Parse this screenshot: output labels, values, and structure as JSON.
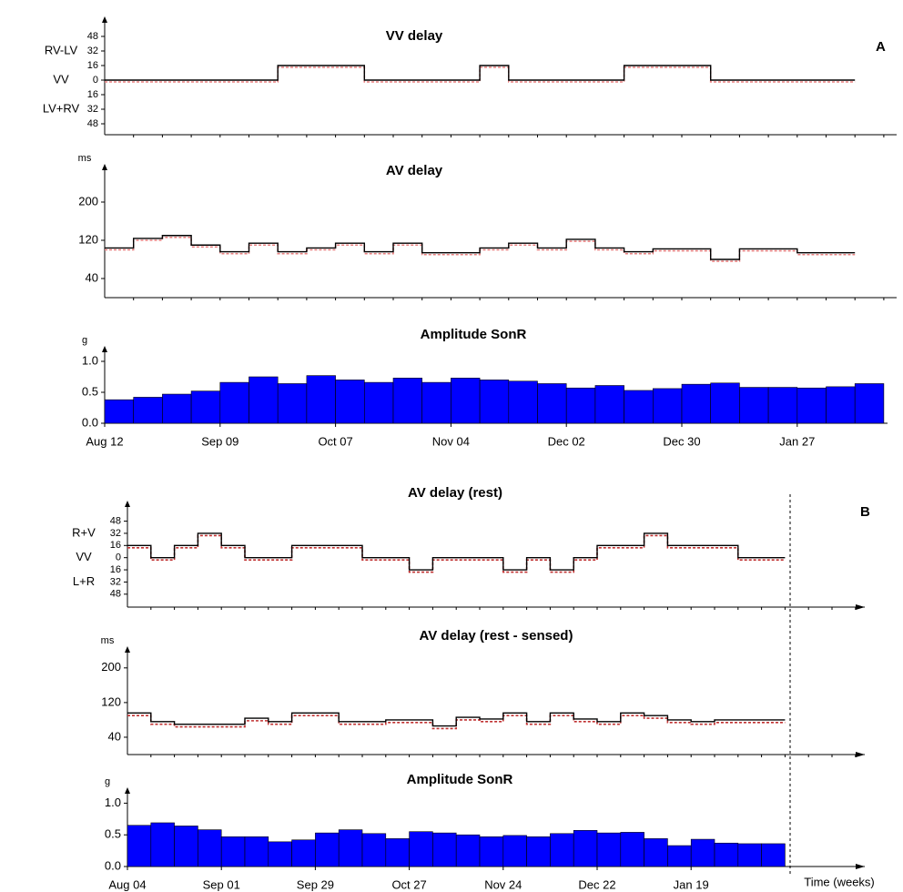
{
  "panel_labels": [
    "A",
    "B"
  ],
  "chart_data": [
    {
      "type": "step",
      "title": "VV delay",
      "ylim": [
        -60,
        70
      ],
      "yticks": [
        48,
        32,
        16,
        0,
        {
          "value": -16,
          "label": "16"
        },
        {
          "value": -32,
          "label": "32"
        },
        {
          "value": -48,
          "label": "48"
        }
      ],
      "side_labels": [
        {
          "value": 32,
          "label": "RV-LV"
        },
        {
          "value": 0,
          "label": "VV"
        },
        {
          "value": -32,
          "label": "LV+RV"
        }
      ],
      "x": [
        0,
        1,
        2,
        3,
        4,
        5,
        6,
        7,
        8,
        9,
        10,
        11,
        12,
        13,
        14,
        15,
        16,
        17,
        18,
        19,
        20,
        21,
        22,
        23,
        24,
        25
      ],
      "series": [
        {
          "color": "#e88080",
          "dash": true,
          "values": [
            -2,
            -2,
            -2,
            -2,
            -2,
            -2,
            14,
            14,
            14,
            -2,
            -2,
            -2,
            -2,
            14,
            -2,
            -2,
            -2,
            -2,
            14,
            14,
            14,
            -2,
            -2,
            -2,
            -2,
            -2
          ]
        },
        {
          "color": "#000000",
          "values": [
            0,
            0,
            0,
            0,
            0,
            0,
            16,
            16,
            16,
            0,
            0,
            0,
            0,
            16,
            0,
            0,
            0,
            0,
            16,
            16,
            16,
            0,
            0,
            0,
            0,
            0
          ]
        }
      ]
    },
    {
      "type": "step",
      "title": "AV delay",
      "unit": "ms",
      "ylim": [
        0,
        280
      ],
      "yticks": [
        200,
        120,
        40
      ],
      "x": [
        0,
        1,
        2,
        3,
        4,
        5,
        6,
        7,
        8,
        9,
        10,
        11,
        12,
        13,
        14,
        15,
        16,
        17,
        18,
        19,
        20,
        21,
        22,
        23,
        24,
        25
      ],
      "series": [
        {
          "color": "#e88080",
          "dash": true,
          "values": [
            100,
            120,
            126,
            106,
            92,
            110,
            92,
            100,
            110,
            92,
            110,
            90,
            90,
            100,
            110,
            100,
            118,
            100,
            92,
            98,
            98,
            76,
            98,
            98,
            90,
            90
          ]
        },
        {
          "color": "#000000",
          "values": [
            104,
            124,
            130,
            110,
            96,
            114,
            96,
            104,
            114,
            96,
            114,
            94,
            94,
            104,
            114,
            104,
            122,
            104,
            96,
            102,
            102,
            80,
            102,
            102,
            94,
            94
          ]
        }
      ]
    },
    {
      "type": "bar",
      "title": "Amplitude SonR",
      "unit": "g",
      "color": "#0000ff",
      "ylim": [
        0,
        1.25
      ],
      "yticks": [
        {
          "value": 0,
          "label": "0.0"
        },
        {
          "value": 0.5,
          "label": "0.5"
        },
        {
          "value": 1,
          "label": "1.0"
        }
      ],
      "xticks": [
        {
          "value": 0,
          "label": "Aug 12"
        },
        {
          "value": 4,
          "label": "Sep 09"
        },
        {
          "value": 8,
          "label": "Oct 07"
        },
        {
          "value": 12,
          "label": "Nov 04"
        },
        {
          "value": 16,
          "label": "Dec 02"
        },
        {
          "value": 20,
          "label": "Dec 30"
        },
        {
          "value": 24,
          "label": "Jan 27"
        }
      ],
      "x": [
        0,
        1,
        2,
        3,
        4,
        5,
        6,
        7,
        8,
        9,
        10,
        11,
        12,
        13,
        14,
        15,
        16,
        17,
        18,
        19,
        20,
        21,
        22,
        23,
        24,
        25,
        26
      ],
      "values": [
        0.38,
        0.42,
        0.47,
        0.52,
        0.66,
        0.75,
        0.64,
        0.77,
        0.7,
        0.66,
        0.73,
        0.66,
        0.73,
        0.7,
        0.68,
        0.64,
        0.57,
        0.61,
        0.53,
        0.56,
        0.63,
        0.65,
        0.58,
        0.58,
        0.57,
        0.59,
        0.64
      ]
    },
    {
      "type": "step",
      "title": "AV delay (rest)",
      "ylim": [
        -65,
        75
      ],
      "yticks": [
        48,
        32,
        16,
        0,
        {
          "value": -16,
          "label": "16"
        },
        {
          "value": -32,
          "label": "32"
        },
        {
          "value": -48,
          "label": "48"
        }
      ],
      "side_labels": [
        {
          "value": 32,
          "label": "R+V"
        },
        {
          "value": 0,
          "label": "VV"
        },
        {
          "value": -32,
          "label": "L+R"
        }
      ],
      "x": [
        0,
        1,
        2,
        3,
        4,
        5,
        6,
        7,
        8,
        9,
        10,
        11,
        12,
        13,
        14,
        15,
        16,
        17,
        18,
        19,
        20,
        21,
        22,
        23,
        24,
        25,
        26,
        27
      ],
      "series": [
        {
          "color": "#c03030",
          "dash": true,
          "values": [
            13,
            -3,
            13,
            29,
            13,
            -3,
            -3,
            13,
            13,
            13,
            -3,
            -3,
            -19,
            -3,
            -3,
            -3,
            -19,
            -3,
            -19,
            -3,
            13,
            13,
            29,
            13,
            13,
            13,
            -3,
            -3
          ]
        },
        {
          "color": "#000000",
          "values": [
            16,
            0,
            16,
            32,
            16,
            0,
            0,
            16,
            16,
            16,
            0,
            0,
            -16,
            0,
            0,
            0,
            -16,
            0,
            -16,
            0,
            16,
            16,
            32,
            16,
            16,
            16,
            0,
            0
          ]
        }
      ]
    },
    {
      "type": "step",
      "title": "AV delay (rest - sensed)",
      "unit": "ms",
      "ylim": [
        0,
        250
      ],
      "yticks": [
        200,
        120,
        40
      ],
      "x": [
        0,
        1,
        2,
        3,
        4,
        5,
        6,
        7,
        8,
        9,
        10,
        11,
        12,
        13,
        14,
        15,
        16,
        17,
        18,
        19,
        20,
        21,
        22,
        23,
        24,
        25,
        26,
        27
      ],
      "series": [
        {
          "color": "#c03030",
          "dash": true,
          "values": [
            90,
            70,
            64,
            64,
            64,
            78,
            70,
            90,
            90,
            70,
            70,
            74,
            74,
            60,
            80,
            76,
            90,
            70,
            90,
            76,
            70,
            90,
            84,
            74,
            70,
            74,
            74,
            74
          ]
        },
        {
          "color": "#000000",
          "values": [
            96,
            76,
            70,
            70,
            70,
            84,
            76,
            96,
            96,
            76,
            76,
            80,
            80,
            66,
            86,
            82,
            96,
            76,
            96,
            82,
            76,
            96,
            90,
            80,
            76,
            80,
            80,
            80
          ]
        }
      ]
    },
    {
      "type": "bar",
      "title": "Amplitude SonR",
      "unit": "g",
      "xlabel": "Time (weeks)",
      "color": "#0000ff",
      "ylim": [
        0,
        1.25
      ],
      "yticks": [
        {
          "value": 0,
          "label": "0.0"
        },
        {
          "value": 0.5,
          "label": "0.5"
        },
        {
          "value": 1,
          "label": "1.0"
        }
      ],
      "xticks": [
        {
          "value": 0,
          "label": "Aug 04"
        },
        {
          "value": 4,
          "label": "Sep 01"
        },
        {
          "value": 8,
          "label": "Sep 29"
        },
        {
          "value": 12,
          "label": "Oct 27"
        },
        {
          "value": 16,
          "label": "Nov 24"
        },
        {
          "value": 20,
          "label": "Dec 22"
        },
        {
          "value": 24,
          "label": "Jan 19"
        }
      ],
      "x": [
        0,
        1,
        2,
        3,
        4,
        5,
        6,
        7,
        8,
        9,
        10,
        11,
        12,
        13,
        14,
        15,
        16,
        17,
        18,
        19,
        20,
        21,
        22,
        23,
        24,
        25,
        26,
        27
      ],
      "values": [
        0.65,
        0.69,
        0.64,
        0.58,
        0.47,
        0.47,
        0.39,
        0.42,
        0.53,
        0.58,
        0.52,
        0.44,
        0.55,
        0.53,
        0.5,
        0.47,
        0.49,
        0.47,
        0.52,
        0.57,
        0.53,
        0.54,
        0.44,
        0.33,
        0.43,
        0.37,
        0.36,
        0.36
      ]
    }
  ]
}
